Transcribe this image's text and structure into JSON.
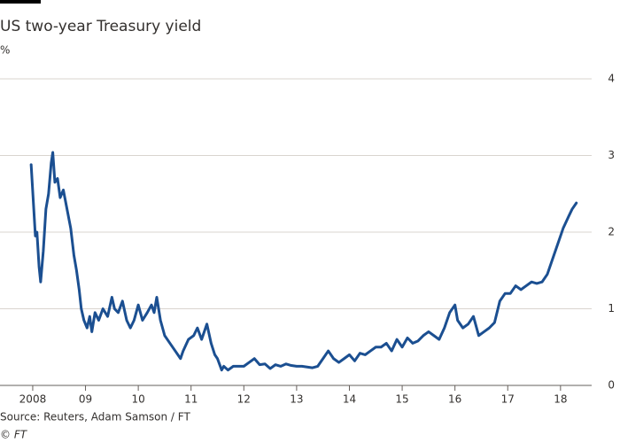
{
  "chart_data": {
    "type": "line",
    "title": "US two-year Treasury yield",
    "subtitle": "%",
    "source": "Source: Reuters, Adam Samson / FT",
    "credit": "© FT",
    "color": "#1b4f91",
    "grid": true,
    "xlim": [
      2007.38,
      2018.59
    ],
    "ylim": [
      0,
      4
    ],
    "yticks": [
      0,
      1,
      2,
      3,
      4
    ],
    "xticks": [
      2008,
      {
        "value": 2009,
        "label": "09"
      },
      {
        "value": 2010,
        "label": "10"
      },
      {
        "value": 2011,
        "label": "11"
      },
      {
        "value": 2012,
        "label": "12"
      },
      {
        "value": 2013,
        "label": "13"
      },
      {
        "value": 2014,
        "label": "14"
      },
      {
        "value": 2015,
        "label": "15"
      },
      {
        "value": 2016,
        "label": "16"
      },
      {
        "value": 2017,
        "label": "17"
      },
      {
        "value": 2018,
        "label": "18"
      }
    ],
    "x": [
      2007.97,
      2008.02,
      2008.05,
      2008.08,
      2008.12,
      2008.15,
      2008.2,
      2008.25,
      2008.3,
      2008.35,
      2008.38,
      2008.42,
      2008.47,
      2008.52,
      2008.58,
      2008.65,
      2008.72,
      2008.78,
      2008.83,
      2008.88,
      2008.92,
      2008.97,
      2009.03,
      2009.08,
      2009.12,
      2009.18,
      2009.25,
      2009.33,
      2009.42,
      2009.5,
      2009.55,
      2009.62,
      2009.7,
      2009.78,
      2009.85,
      2009.92,
      2010.0,
      2010.08,
      2010.17,
      2010.25,
      2010.3,
      2010.35,
      2010.42,
      2010.5,
      2010.6,
      2010.7,
      2010.8,
      2010.85,
      2010.95,
      2011.05,
      2011.12,
      2011.2,
      2011.3,
      2011.38,
      2011.45,
      2011.5,
      2011.58,
      2011.62,
      2011.7,
      2011.8,
      2011.9,
      2012.0,
      2012.1,
      2012.2,
      2012.3,
      2012.4,
      2012.5,
      2012.6,
      2012.7,
      2012.8,
      2012.9,
      2013.0,
      2013.1,
      2013.2,
      2013.3,
      2013.4,
      2013.5,
      2013.6,
      2013.7,
      2013.8,
      2013.9,
      2014.0,
      2014.1,
      2014.2,
      2014.3,
      2014.4,
      2014.5,
      2014.6,
      2014.7,
      2014.8,
      2014.9,
      2015.0,
      2015.1,
      2015.2,
      2015.3,
      2015.4,
      2015.5,
      2015.6,
      2015.7,
      2015.8,
      2015.9,
      2016.0,
      2016.05,
      2016.15,
      2016.25,
      2016.35,
      2016.45,
      2016.55,
      2016.65,
      2016.75,
      2016.85,
      2016.95,
      2017.05,
      2017.15,
      2017.25,
      2017.35,
      2017.45,
      2017.55,
      2017.65,
      2017.75,
      2017.85,
      2017.95,
      2018.05,
      2018.15,
      2018.22,
      2018.3
    ],
    "values": [
      2.88,
      2.3,
      1.95,
      2.0,
      1.55,
      1.35,
      1.75,
      2.3,
      2.5,
      2.9,
      3.04,
      2.65,
      2.7,
      2.45,
      2.55,
      2.3,
      2.05,
      1.7,
      1.5,
      1.25,
      1.0,
      0.85,
      0.75,
      0.9,
      0.7,
      0.95,
      0.85,
      1.0,
      0.9,
      1.15,
      1.0,
      0.95,
      1.1,
      0.85,
      0.75,
      0.85,
      1.05,
      0.85,
      0.95,
      1.05,
      0.95,
      1.15,
      0.85,
      0.65,
      0.55,
      0.45,
      0.35,
      0.45,
      0.6,
      0.65,
      0.75,
      0.6,
      0.8,
      0.55,
      0.4,
      0.35,
      0.2,
      0.25,
      0.2,
      0.25,
      0.25,
      0.25,
      0.3,
      0.35,
      0.27,
      0.28,
      0.22,
      0.27,
      0.25,
      0.28,
      0.26,
      0.25,
      0.25,
      0.24,
      0.23,
      0.25,
      0.35,
      0.45,
      0.35,
      0.3,
      0.35,
      0.4,
      0.32,
      0.42,
      0.4,
      0.45,
      0.5,
      0.5,
      0.55,
      0.45,
      0.6,
      0.5,
      0.62,
      0.55,
      0.58,
      0.65,
      0.7,
      0.65,
      0.6,
      0.75,
      0.95,
      1.05,
      0.85,
      0.75,
      0.8,
      0.9,
      0.65,
      0.7,
      0.75,
      0.82,
      1.1,
      1.2,
      1.2,
      1.3,
      1.25,
      1.3,
      1.35,
      1.33,
      1.35,
      1.45,
      1.65,
      1.85,
      2.05,
      2.2,
      2.3,
      2.38
    ]
  }
}
